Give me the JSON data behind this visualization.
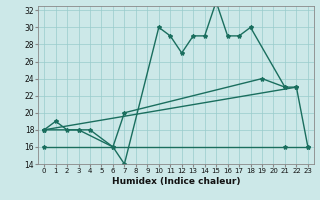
{
  "xlabel": "Humidex (Indice chaleur)",
  "line1_x": [
    0,
    1,
    2,
    3,
    4,
    6,
    7,
    10,
    11,
    12,
    13,
    14,
    15,
    16,
    17,
    18,
    21,
    22,
    23
  ],
  "line1_y": [
    18,
    19,
    18,
    18,
    18,
    16,
    14,
    30,
    29,
    27,
    29,
    29,
    33,
    29,
    29,
    30,
    23,
    23,
    16
  ],
  "line2_x": [
    0,
    3,
    6,
    7,
    19,
    21
  ],
  "line2_y": [
    18,
    18,
    16,
    20,
    24,
    23
  ],
  "line3_x": [
    0,
    22
  ],
  "line3_y": [
    18,
    23
  ],
  "line4_x": [
    0,
    21,
    23
  ],
  "line4_y": [
    16,
    16,
    16
  ],
  "ylim": [
    14,
    32.5
  ],
  "xlim": [
    -0.5,
    23.5
  ],
  "yticks": [
    14,
    16,
    18,
    20,
    22,
    24,
    26,
    28,
    30,
    32
  ],
  "xticks": [
    0,
    1,
    2,
    3,
    4,
    5,
    6,
    7,
    8,
    9,
    10,
    11,
    12,
    13,
    14,
    15,
    16,
    17,
    18,
    19,
    20,
    21,
    22,
    23
  ],
  "bg_color": "#cce8e8",
  "line_color": "#1a6e5e",
  "grid_color": "#99cccc"
}
